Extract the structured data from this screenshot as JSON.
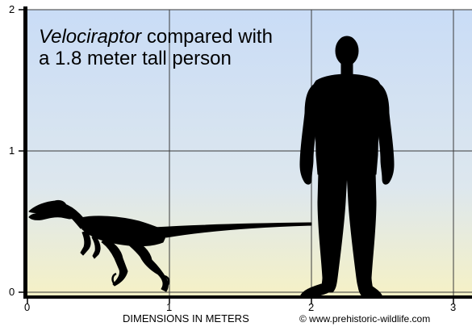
{
  "title": {
    "italic_part": "Velociraptor",
    "line1_rest": " compared with",
    "line2": "a 1.8 meter tall person"
  },
  "x_axis": {
    "label": "DIMENSIONS IN METERS",
    "ticks": [
      "0",
      "1",
      "2",
      "3"
    ]
  },
  "y_axis": {
    "ticks": [
      "0",
      "1",
      "2"
    ]
  },
  "credit": "© www.prehistoric-wildlife.com",
  "silhouettes": [
    {
      "name": "Velociraptor",
      "height_m": 0.5,
      "length_m": 2.0
    },
    {
      "name": "person",
      "height_m": 1.8
    }
  ],
  "colors": {
    "background_top": "#c9dcf6",
    "background_bottom": "#f5f1c6",
    "silhouette": "#000000",
    "grid": "#3a3a3a",
    "axis": "#000000"
  }
}
